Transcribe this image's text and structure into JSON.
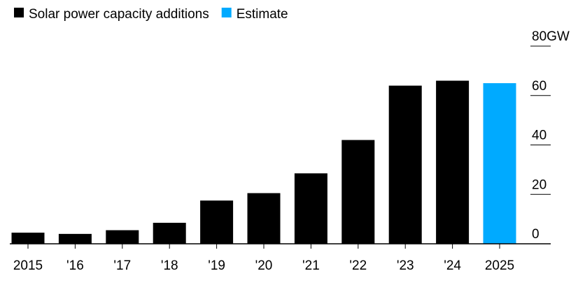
{
  "chart_data": {
    "type": "bar",
    "title": "",
    "xlabel": "",
    "ylabel": "",
    "categories": [
      "2015",
      "'16",
      "'17",
      "'18",
      "'19",
      "'20",
      "'21",
      "'22",
      "'23",
      "'24",
      "2025"
    ],
    "series": [
      {
        "name": "Solar power capacity additions",
        "values": [
          4.5,
          4,
          5.5,
          8.5,
          17.5,
          20.5,
          28.5,
          42,
          64,
          66,
          null
        ],
        "color": "#000000"
      },
      {
        "name": "Estimate",
        "values": [
          null,
          null,
          null,
          null,
          null,
          null,
          null,
          null,
          null,
          null,
          65
        ],
        "color": "#00aaff"
      }
    ],
    "y_ticks": [
      {
        "value": 80,
        "label": "80GW"
      },
      {
        "value": 60,
        "label": "60"
      },
      {
        "value": 40,
        "label": "40"
      },
      {
        "value": 20,
        "label": "20"
      },
      {
        "value": 0,
        "label": "0"
      }
    ],
    "ylim": [
      0,
      80
    ],
    "grid": false,
    "legend_position": "top-left"
  }
}
